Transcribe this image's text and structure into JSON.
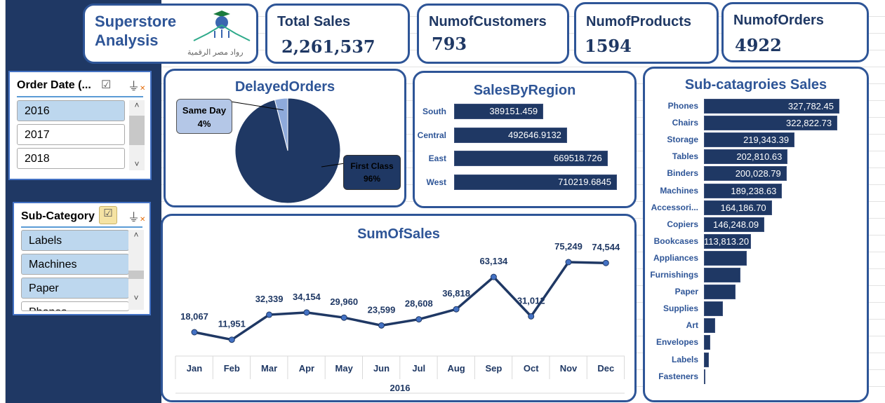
{
  "header": {
    "title_line1": "Superstore",
    "title_line2": "Analysis",
    "logo_text": "رواد مصر الرقمية"
  },
  "kpis": [
    {
      "label": "Total Sales",
      "value": "2,261,537"
    },
    {
      "label": "NumofCustomers",
      "value": "793"
    },
    {
      "label": "NumofProducts",
      "value": "1594"
    },
    {
      "label": "NumofOrders",
      "value": "4922"
    }
  ],
  "slicers": {
    "order_date": {
      "title": "Order Date (...",
      "items": [
        {
          "label": "2016",
          "selected": true
        },
        {
          "label": "2017",
          "selected": false
        },
        {
          "label": "2018",
          "selected": false
        }
      ]
    },
    "sub_category": {
      "title": "Sub-Category",
      "items": [
        {
          "label": "Labels",
          "selected": true
        },
        {
          "label": "Machines",
          "selected": true
        },
        {
          "label": "Paper",
          "selected": true
        },
        {
          "label": "Phones",
          "selected": false
        }
      ]
    }
  },
  "colors": {
    "navy": "#1f3864",
    "accent": "#2e5597",
    "light": "#8eaadb",
    "selected": "#bdd7ee"
  },
  "chart_data": [
    {
      "type": "pie",
      "title": "DelayedOrders",
      "slices": [
        {
          "label": "Same Day",
          "value": 4,
          "display": "4%",
          "color": "#8eaadb"
        },
        {
          "label": "First Class",
          "value": 96,
          "display": "96%",
          "color": "#1f3864"
        }
      ]
    },
    {
      "type": "bar",
      "orientation": "horizontal",
      "title": "SalesByRegion",
      "categories": [
        "South",
        "Central",
        "East",
        "West"
      ],
      "values": [
        389151.459,
        492646.9132,
        669518.726,
        710219.6845
      ],
      "labels": [
        "389151.459",
        "492646.9132",
        "669518.726",
        "710219.6845"
      ]
    },
    {
      "type": "bar",
      "orientation": "horizontal",
      "title": "Sub-catagroies Sales",
      "categories": [
        "Phones",
        "Chairs",
        "Storage",
        "Tables",
        "Binders",
        "Machines",
        "Accessori...",
        "Copiers",
        "Bookcases",
        "Appliances",
        "Furnishings",
        "Paper",
        "Supplies",
        "Art",
        "Envelopes",
        "Labels",
        "Fasteners"
      ],
      "values": [
        327782.45,
        322822.73,
        219343.39,
        202810.63,
        200028.79,
        189238.63,
        164186.7,
        146248.09,
        113813.2,
        103600,
        88300,
        76400,
        45900,
        27200,
        15300,
        11900,
        3000
      ],
      "labels": [
        "327,782.45",
        "322,822.73",
        "219,343.39",
        "202,810.63",
        "200,028.79",
        "189,238.63",
        "164,186.70",
        "146,248.09",
        "113,813.20",
        "",
        "",
        "",
        "",
        "",
        "",
        "",
        ""
      ]
    },
    {
      "type": "line",
      "title": "SumOfSales",
      "categories": [
        "Jan",
        "Feb",
        "Mar",
        "Apr",
        "May",
        "Jun",
        "Jul",
        "Aug",
        "Sep",
        "Oct",
        "Nov",
        "Dec"
      ],
      "group_label": "2016",
      "values": [
        18067,
        11951,
        32339,
        34154,
        29960,
        23599,
        28608,
        36818,
        63134,
        31012,
        75249,
        74544
      ],
      "labels": [
        "18,067",
        "11,951",
        "32,339",
        "34,154",
        "29,960",
        "23,599",
        "28,608",
        "36,818",
        "63,134",
        "31,012",
        "75,249",
        "74,544"
      ]
    }
  ]
}
